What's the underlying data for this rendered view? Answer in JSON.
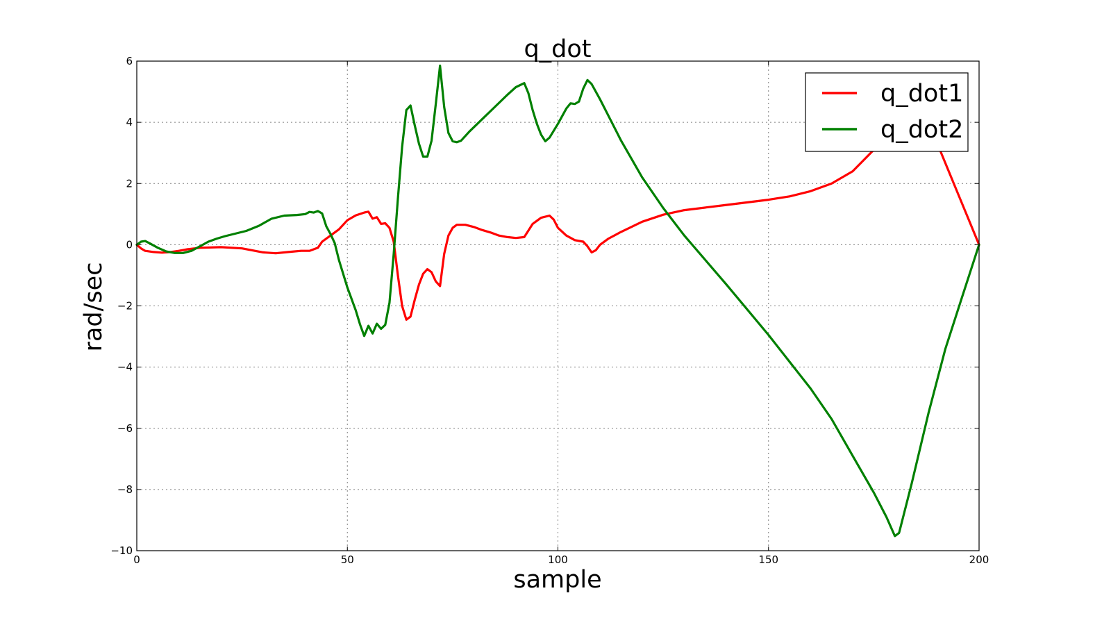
{
  "chart_data": {
    "type": "line",
    "title": "q_dot",
    "xlabel": "sample",
    "ylabel": "rad/sec",
    "xlim": [
      0,
      200
    ],
    "ylim": [
      -10,
      6
    ],
    "xticks": [
      0,
      50,
      100,
      150,
      200
    ],
    "yticks": [
      -10,
      -8,
      -6,
      -4,
      -2,
      0,
      2,
      4,
      6
    ],
    "xtick_labels": [
      "0",
      "50",
      "100",
      "150",
      "200"
    ],
    "ytick_labels": [
      "−10",
      "−8",
      "−6",
      "−4",
      "−2",
      "0",
      "2",
      "4",
      "6"
    ],
    "grid": true,
    "legend_position": "upper-right",
    "series": [
      {
        "name": "q_dot1",
        "color": "#ff0000",
        "points": [
          [
            0,
            0
          ],
          [
            1,
            -0.12
          ],
          [
            2,
            -0.2
          ],
          [
            4,
            -0.24
          ],
          [
            6,
            -0.26
          ],
          [
            8,
            -0.24
          ],
          [
            10,
            -0.2
          ],
          [
            12,
            -0.15
          ],
          [
            15,
            -0.1
          ],
          [
            20,
            -0.08
          ],
          [
            25,
            -0.12
          ],
          [
            30,
            -0.25
          ],
          [
            33,
            -0.28
          ],
          [
            36,
            -0.24
          ],
          [
            39,
            -0.2
          ],
          [
            41,
            -0.2
          ],
          [
            43,
            -0.1
          ],
          [
            44,
            0.1
          ],
          [
            46,
            0.3
          ],
          [
            48,
            0.5
          ],
          [
            50,
            0.8
          ],
          [
            52,
            0.96
          ],
          [
            54,
            1.05
          ],
          [
            55,
            1.08
          ],
          [
            56,
            0.85
          ],
          [
            57,
            0.9
          ],
          [
            58,
            0.68
          ],
          [
            59,
            0.7
          ],
          [
            60,
            0.55
          ],
          [
            61,
            0.1
          ],
          [
            62,
            -1.0
          ],
          [
            63,
            -2.0
          ],
          [
            64,
            -2.45
          ],
          [
            65,
            -2.35
          ],
          [
            66,
            -1.8
          ],
          [
            67,
            -1.3
          ],
          [
            68,
            -0.95
          ],
          [
            69,
            -0.8
          ],
          [
            70,
            -0.9
          ],
          [
            71,
            -1.2
          ],
          [
            72,
            -1.35
          ],
          [
            73,
            -0.3
          ],
          [
            74,
            0.3
          ],
          [
            75,
            0.55
          ],
          [
            76,
            0.65
          ],
          [
            78,
            0.65
          ],
          [
            80,
            0.58
          ],
          [
            82,
            0.48
          ],
          [
            84,
            0.4
          ],
          [
            86,
            0.3
          ],
          [
            88,
            0.25
          ],
          [
            90,
            0.22
          ],
          [
            92,
            0.25
          ],
          [
            94,
            0.68
          ],
          [
            96,
            0.88
          ],
          [
            98,
            0.95
          ],
          [
            99,
            0.82
          ],
          [
            100,
            0.55
          ],
          [
            102,
            0.3
          ],
          [
            104,
            0.15
          ],
          [
            106,
            0.1
          ],
          [
            107,
            -0.05
          ],
          [
            108,
            -0.25
          ],
          [
            109,
            -0.18
          ],
          [
            110,
            0
          ],
          [
            112,
            0.2
          ],
          [
            115,
            0.42
          ],
          [
            120,
            0.75
          ],
          [
            125,
            0.98
          ],
          [
            130,
            1.13
          ],
          [
            140,
            1.3
          ],
          [
            150,
            1.47
          ],
          [
            155,
            1.58
          ],
          [
            160,
            1.75
          ],
          [
            165,
            2.0
          ],
          [
            170,
            2.4
          ],
          [
            175,
            3.1
          ],
          [
            178,
            3.8
          ],
          [
            181,
            4.5
          ],
          [
            183,
            5.0
          ],
          [
            186,
            4.9
          ],
          [
            188,
            4.2
          ],
          [
            191,
            3.0
          ],
          [
            194,
            2.0
          ],
          [
            197,
            1.0
          ],
          [
            200,
            0
          ]
        ]
      },
      {
        "name": "q_dot2",
        "color": "#008000",
        "points": [
          [
            0,
            0
          ],
          [
            1,
            0.1
          ],
          [
            2,
            0.12
          ],
          [
            3,
            0.05
          ],
          [
            5,
            -0.1
          ],
          [
            7,
            -0.22
          ],
          [
            9,
            -0.27
          ],
          [
            11,
            -0.27
          ],
          [
            13,
            -0.2
          ],
          [
            15,
            -0.05
          ],
          [
            17,
            0.1
          ],
          [
            19,
            0.2
          ],
          [
            21,
            0.28
          ],
          [
            23,
            0.35
          ],
          [
            26,
            0.45
          ],
          [
            29,
            0.62
          ],
          [
            32,
            0.85
          ],
          [
            35,
            0.95
          ],
          [
            38,
            0.97
          ],
          [
            40,
            1.0
          ],
          [
            41,
            1.07
          ],
          [
            42,
            1.05
          ],
          [
            43,
            1.1
          ],
          [
            44,
            1.02
          ],
          [
            45,
            0.6
          ],
          [
            46,
            0.35
          ],
          [
            47,
            0.05
          ],
          [
            48,
            -0.5
          ],
          [
            50,
            -1.4
          ],
          [
            52,
            -2.15
          ],
          [
            53,
            -2.6
          ],
          [
            54,
            -2.98
          ],
          [
            55,
            -2.65
          ],
          [
            56,
            -2.9
          ],
          [
            57,
            -2.58
          ],
          [
            58,
            -2.75
          ],
          [
            59,
            -2.62
          ],
          [
            60,
            -1.9
          ],
          [
            61,
            -0.3
          ],
          [
            62,
            1.5
          ],
          [
            63,
            3.2
          ],
          [
            64,
            4.4
          ],
          [
            65,
            4.55
          ],
          [
            66,
            3.9
          ],
          [
            67,
            3.3
          ],
          [
            68,
            2.88
          ],
          [
            69,
            2.88
          ],
          [
            70,
            3.4
          ],
          [
            71,
            4.6
          ],
          [
            72,
            5.85
          ],
          [
            73,
            4.5
          ],
          [
            74,
            3.65
          ],
          [
            75,
            3.38
          ],
          [
            76,
            3.35
          ],
          [
            77,
            3.4
          ],
          [
            79,
            3.7
          ],
          [
            82,
            4.1
          ],
          [
            85,
            4.5
          ],
          [
            88,
            4.9
          ],
          [
            90,
            5.15
          ],
          [
            92,
            5.28
          ],
          [
            93,
            4.95
          ],
          [
            94,
            4.4
          ],
          [
            95,
            3.95
          ],
          [
            96,
            3.6
          ],
          [
            97,
            3.38
          ],
          [
            98,
            3.5
          ],
          [
            100,
            3.95
          ],
          [
            102,
            4.45
          ],
          [
            103,
            4.62
          ],
          [
            104,
            4.6
          ],
          [
            105,
            4.68
          ],
          [
            106,
            5.1
          ],
          [
            107,
            5.38
          ],
          [
            108,
            5.25
          ],
          [
            110,
            4.75
          ],
          [
            115,
            3.4
          ],
          [
            120,
            2.2
          ],
          [
            125,
            1.2
          ],
          [
            130,
            0.3
          ],
          [
            140,
            -1.3
          ],
          [
            150,
            -2.95
          ],
          [
            160,
            -4.7
          ],
          [
            165,
            -5.7
          ],
          [
            170,
            -6.9
          ],
          [
            175,
            -8.1
          ],
          [
            178,
            -8.9
          ],
          [
            180,
            -9.52
          ],
          [
            181,
            -9.42
          ],
          [
            184,
            -7.8
          ],
          [
            188,
            -5.5
          ],
          [
            192,
            -3.4
          ],
          [
            196,
            -1.7
          ],
          [
            200,
            0
          ]
        ]
      }
    ]
  }
}
